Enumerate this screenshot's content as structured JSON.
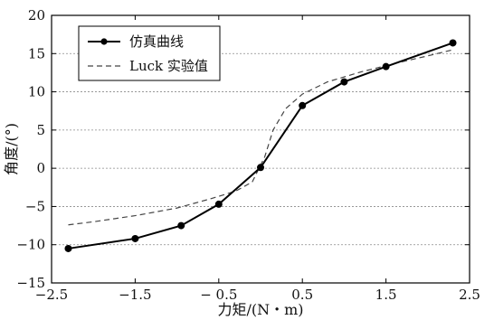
{
  "chart_data": {
    "type": "line",
    "xlabel": "力矩/(N・m)",
    "ylabel": "角度/(°)",
    "xlim": [
      -2.5,
      2.5
    ],
    "ylim": [
      -15,
      20
    ],
    "x_ticks": [
      -2.5,
      -1.5,
      -0.5,
      0.5,
      1.5,
      2.5
    ],
    "x_tick_labels": [
      "−2.5",
      "−1.5",
      "− 0.5",
      "0.5",
      "1.5",
      "2.5"
    ],
    "y_ticks": [
      -15,
      -10,
      -5,
      0,
      5,
      10,
      15,
      20
    ],
    "y_tick_labels": [
      "−15",
      "−10",
      "−5",
      "0",
      "5",
      "10",
      "15",
      "20"
    ],
    "grid": "horizontal-dashed",
    "legend_position": "top-left",
    "series": [
      {
        "name": "仿真曲线",
        "style": "solid-markers",
        "color": "#000000",
        "points": [
          [
            -2.3,
            -10.5
          ],
          [
            -1.5,
            -9.2
          ],
          [
            -0.95,
            -7.5
          ],
          [
            -0.5,
            -4.7
          ],
          [
            0.0,
            0.1
          ],
          [
            0.5,
            8.2
          ],
          [
            1.0,
            11.3
          ],
          [
            1.5,
            13.3
          ],
          [
            2.3,
            16.4
          ]
        ]
      },
      {
        "name": "Luck 实验值",
        "style": "dashed",
        "color": "#444444",
        "points": [
          [
            -2.3,
            -7.4
          ],
          [
            -2.0,
            -7.0
          ],
          [
            -1.5,
            -6.2
          ],
          [
            -1.0,
            -5.2
          ],
          [
            -0.6,
            -4.0
          ],
          [
            -0.3,
            -3.0
          ],
          [
            -0.1,
            -1.8
          ],
          [
            0.05,
            1.5
          ],
          [
            0.15,
            5.0
          ],
          [
            0.3,
            7.8
          ],
          [
            0.5,
            9.7
          ],
          [
            0.8,
            11.3
          ],
          [
            1.2,
            12.6
          ],
          [
            1.6,
            13.7
          ],
          [
            2.0,
            14.7
          ],
          [
            2.3,
            15.5
          ]
        ]
      }
    ]
  }
}
